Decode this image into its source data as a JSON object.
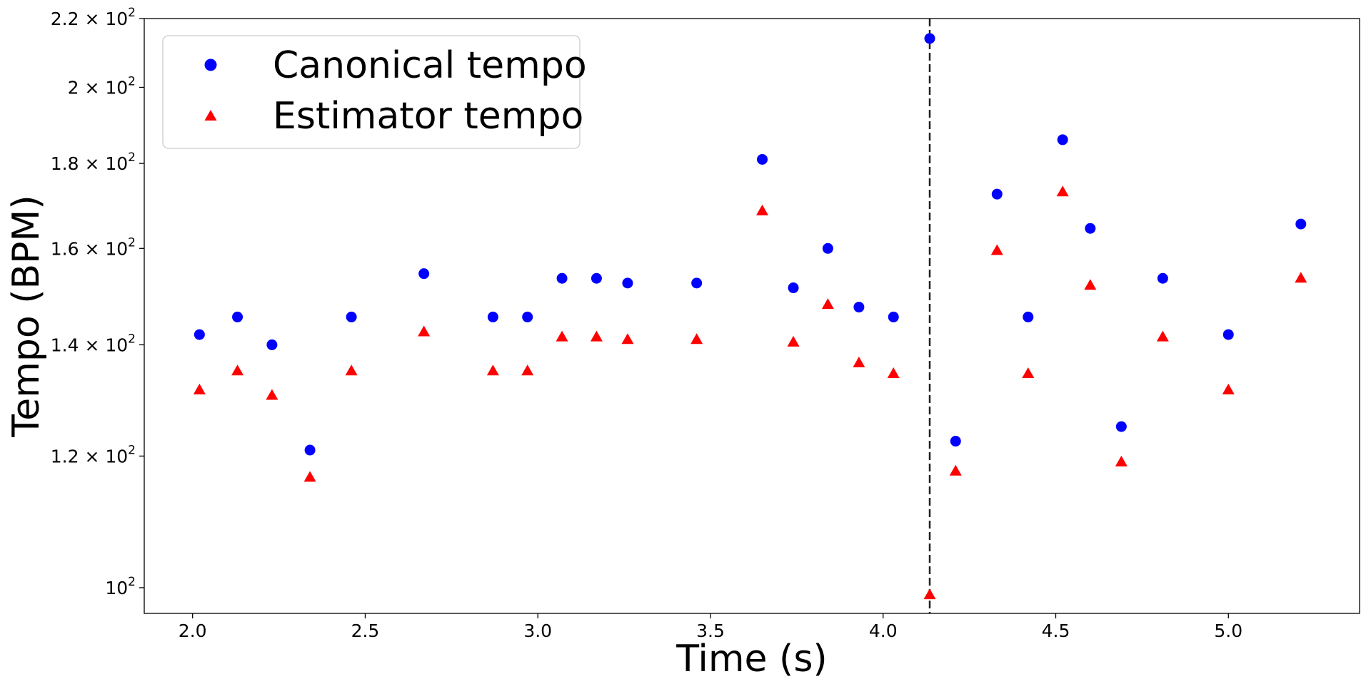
{
  "chart_data": {
    "type": "scatter",
    "title": "",
    "xlabel": "Time (s)",
    "ylabel": "Tempo (BPM)",
    "yscale": "log",
    "xlim": [
      1.86,
      5.38
    ],
    "ylim": [
      96.5,
      220
    ],
    "xticks": [
      2.0,
      2.5,
      3.0,
      3.5,
      4.0,
      4.5,
      5.0
    ],
    "xtick_labels": [
      "2.0",
      "2.5",
      "3.0",
      "3.5",
      "4.0",
      "4.5",
      "5.0"
    ],
    "yticks": [
      {
        "value": 100,
        "base": "10",
        "exp": "2",
        "mant": ""
      },
      {
        "value": 120,
        "base": "10",
        "exp": "2",
        "mant": "1.2"
      },
      {
        "value": 140,
        "base": "10",
        "exp": "2",
        "mant": "1.4"
      },
      {
        "value": 160,
        "base": "10",
        "exp": "2",
        "mant": "1.6"
      },
      {
        "value": 180,
        "base": "10",
        "exp": "2",
        "mant": "1.8"
      },
      {
        "value": 200,
        "base": "10",
        "exp": "2",
        "mant": "2"
      },
      {
        "value": 220,
        "base": "10",
        "exp": "2",
        "mant": "2.2"
      }
    ],
    "grid": false,
    "legend_position": "top-left",
    "vline": {
      "x": 4.135,
      "style": "dashed",
      "color": "#222222"
    },
    "series": [
      {
        "name": "Canonical tempo",
        "marker": "circle",
        "color": "#0000ff",
        "x": [
          2.02,
          2.13,
          2.23,
          2.34,
          2.46,
          2.67,
          2.87,
          2.97,
          3.07,
          3.17,
          3.26,
          3.46,
          3.65,
          3.74,
          3.84,
          3.93,
          4.03,
          4.135,
          4.21,
          4.33,
          4.42,
          4.52,
          4.6,
          4.69,
          4.81,
          5.0,
          5.21
        ],
        "y": [
          142,
          145.5,
          140,
          121,
          145.5,
          154.5,
          145.5,
          145.5,
          153.5,
          153.5,
          152.5,
          152.5,
          181,
          151.5,
          160,
          147.5,
          145.5,
          214,
          122.5,
          172.5,
          145.5,
          186,
          164.5,
          125,
          153.5,
          142,
          165.5
        ]
      },
      {
        "name": "Estimator tempo",
        "marker": "triangle",
        "color": "#ff0000",
        "x": [
          2.02,
          2.13,
          2.23,
          2.34,
          2.46,
          2.67,
          2.87,
          2.97,
          3.07,
          3.17,
          3.26,
          3.46,
          3.65,
          3.74,
          3.84,
          3.93,
          4.03,
          4.135,
          4.21,
          4.33,
          4.42,
          4.52,
          4.6,
          4.69,
          4.81,
          5.0,
          5.21
        ],
        "y": [
          131.5,
          135,
          130.5,
          116.5,
          135,
          142.5,
          135,
          135,
          141.5,
          141.5,
          141,
          141,
          168.5,
          140.5,
          148,
          136.5,
          134.5,
          99,
          117.5,
          159.5,
          134.5,
          173,
          152,
          119,
          141.5,
          131.5,
          153.5
        ]
      }
    ]
  }
}
